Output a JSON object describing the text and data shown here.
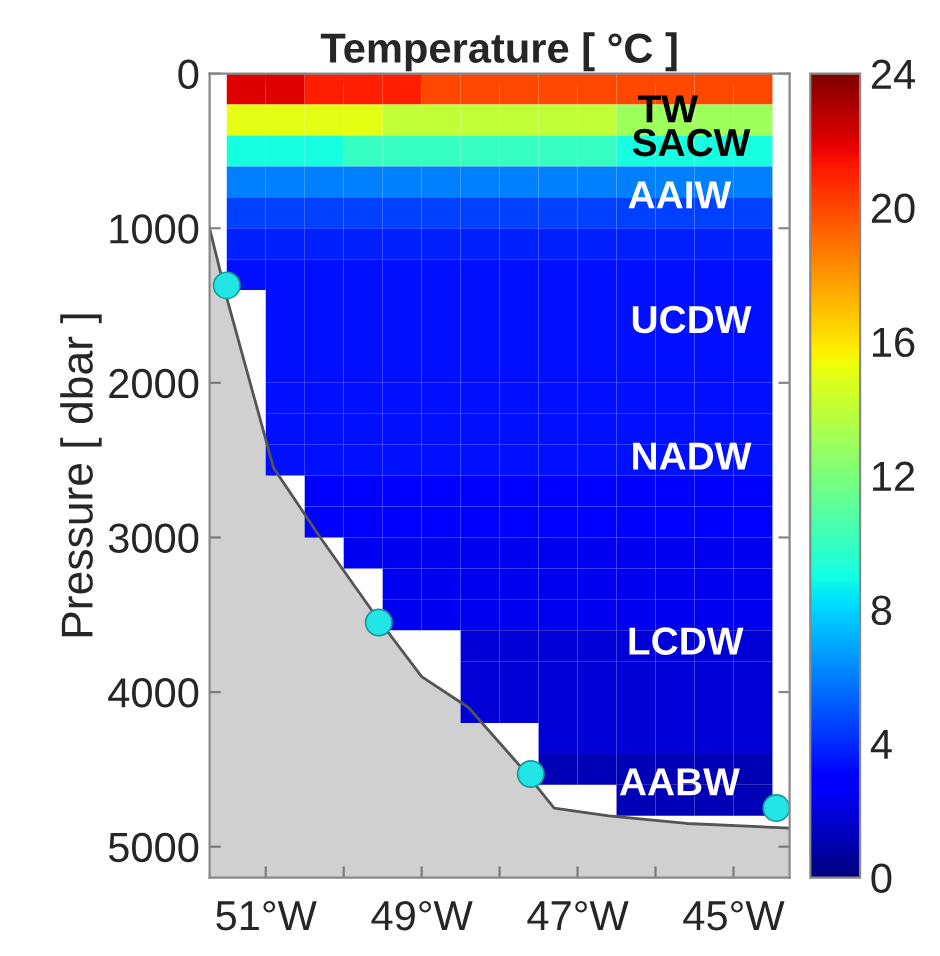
{
  "chart_data": {
    "type": "heatmap",
    "title": "Temperature [ °C ]",
    "ylabel": "Pressure [ dbar ]",
    "x": [
      -51.25,
      -50.75,
      -50.25,
      -49.75,
      -49.25,
      -48.75,
      -48.25,
      -47.75,
      -47.25,
      -46.75,
      -46.25,
      -45.75,
      -45.25,
      -44.75
    ],
    "y": [
      100,
      300,
      500,
      700,
      900,
      1100,
      1300,
      1500,
      1700,
      1900,
      2100,
      2300,
      2500,
      2700,
      2900,
      3100,
      3300,
      3500,
      3700,
      3900,
      4100,
      4300,
      4500,
      4700
    ],
    "xlim": [
      -51.72,
      -44.28
    ],
    "xticks": [
      {
        "value": -51,
        "label": "51°W"
      },
      {
        "value": -50,
        "label": null
      },
      {
        "value": -49,
        "label": "49°W"
      },
      {
        "value": -48,
        "label": null
      },
      {
        "value": -47,
        "label": "47°W"
      },
      {
        "value": -46,
        "label": null
      },
      {
        "value": -45,
        "label": "45°W"
      }
    ],
    "ylim": [
      5200,
      0
    ],
    "yticks": [
      0,
      1000,
      2000,
      3000,
      4000,
      5000
    ],
    "cells": [
      [
        22,
        22,
        21,
        21,
        21,
        20,
        20,
        20,
        20,
        20,
        20,
        20,
        20,
        20
      ],
      [
        15,
        15,
        15,
        15,
        14,
        14,
        14,
        14,
        14,
        14,
        13,
        13,
        13,
        13
      ],
      [
        9,
        9,
        9,
        10,
        10,
        10,
        10,
        10,
        10,
        10,
        9,
        9,
        9,
        9
      ],
      [
        6,
        6,
        6,
        6,
        6,
        6,
        6,
        6,
        6,
        6,
        6,
        6,
        6,
        6
      ],
      [
        4.5,
        4.5,
        4.5,
        4.5,
        4.5,
        4.5,
        4.5,
        4.5,
        4.5,
        4.5,
        4.5,
        4.5,
        4.5,
        4.5
      ],
      [
        3.8,
        3.8,
        3.8,
        3.8,
        3.8,
        3.8,
        3.8,
        3.8,
        3.8,
        3.8,
        3.8,
        3.8,
        3.8,
        3.8
      ],
      [
        3.4,
        3.4,
        3.4,
        3.4,
        3.4,
        3.4,
        3.4,
        3.4,
        3.4,
        3.4,
        3.4,
        3.4,
        3.4,
        3.4
      ],
      [
        null,
        3.4,
        3.4,
        3.4,
        3.4,
        3.4,
        3.4,
        3.4,
        3.4,
        3.4,
        3.4,
        3.4,
        3.4,
        3.4
      ],
      [
        null,
        3.4,
        3.4,
        3.4,
        3.4,
        3.4,
        3.4,
        3.4,
        3.4,
        3.4,
        3.4,
        3.4,
        3.4,
        3.4
      ],
      [
        null,
        3.4,
        3.4,
        3.4,
        3.4,
        3.4,
        3.4,
        3.4,
        3.4,
        3.4,
        3.4,
        3.4,
        3.4,
        3.4
      ],
      [
        null,
        3.4,
        3.4,
        3.4,
        3.4,
        3.4,
        3.4,
        3.4,
        3.4,
        3.4,
        3.4,
        3.4,
        3.4,
        3.4
      ],
      [
        null,
        3.4,
        3.4,
        3.4,
        3.4,
        3.4,
        3.4,
        3.4,
        3.4,
        3.4,
        3.4,
        3.4,
        3.4,
        3.4
      ],
      [
        null,
        3.4,
        3.4,
        3.4,
        3.4,
        3.4,
        3.4,
        3.4,
        3.4,
        3.4,
        3.4,
        3.4,
        3.4,
        3.4
      ],
      [
        null,
        null,
        3.0,
        3.0,
        3.0,
        3.0,
        3.0,
        3.0,
        3.0,
        3.0,
        3.0,
        3.0,
        3.0,
        3.0
      ],
      [
        null,
        null,
        3.0,
        3.0,
        3.0,
        3.0,
        3.0,
        3.0,
        3.0,
        3.0,
        3.0,
        3.0,
        3.0,
        3.0
      ],
      [
        null,
        null,
        null,
        2.4,
        2.4,
        2.4,
        2.4,
        2.4,
        2.4,
        2.4,
        2.4,
        2.4,
        2.4,
        2.4
      ],
      [
        null,
        null,
        null,
        null,
        2.4,
        2.4,
        2.4,
        2.4,
        2.4,
        2.4,
        2.4,
        2.4,
        2.4,
        2.4
      ],
      [
        null,
        null,
        null,
        null,
        2.4,
        2.4,
        2.4,
        2.4,
        2.4,
        2.4,
        2.4,
        2.4,
        2.4,
        2.4
      ],
      [
        null,
        null,
        null,
        null,
        null,
        null,
        1.8,
        1.8,
        1.8,
        1.8,
        1.8,
        1.8,
        1.8,
        1.8
      ],
      [
        null,
        null,
        null,
        null,
        null,
        null,
        1.8,
        1.8,
        1.8,
        1.8,
        1.8,
        1.8,
        1.8,
        1.8
      ],
      [
        null,
        null,
        null,
        null,
        null,
        null,
        1.8,
        1.8,
        1.8,
        1.8,
        1.8,
        1.8,
        1.8,
        1.8
      ],
      [
        null,
        null,
        null,
        null,
        null,
        null,
        null,
        null,
        1.8,
        1.8,
        1.8,
        1.8,
        1.8,
        1.8
      ],
      [
        null,
        null,
        null,
        null,
        null,
        null,
        null,
        null,
        1.2,
        1.2,
        1.2,
        1.2,
        1.2,
        1.2
      ],
      [
        null,
        null,
        null,
        null,
        null,
        null,
        null,
        null,
        null,
        null,
        1.2,
        1.2,
        1.2,
        1.2
      ]
    ],
    "clim": [
      0,
      24
    ],
    "cticks": [
      0,
      4,
      8,
      12,
      16,
      20,
      24
    ],
    "series": [
      {
        "type": "line",
        "color": "#555555",
        "x": [
          -51.72,
          -51.5,
          -51.2,
          -50.9,
          -50.3,
          -49.6,
          -49.0,
          -48.4,
          -47.7,
          -47.3,
          -46.6,
          -45.6,
          -44.28
        ],
        "values": [
          1000,
          1450,
          2000,
          2550,
          3000,
          3500,
          3900,
          4100,
          4500,
          4750,
          4800,
          4850,
          4880
        ],
        "lower": [
          1000,
          1450,
          2000,
          2550,
          3000,
          3500,
          3900,
          4100,
          4500,
          4750,
          4800,
          4850,
          4880
        ],
        "upper": [
          5200,
          5200,
          5200,
          5200,
          5200,
          5200,
          5200,
          5200,
          5200,
          5200,
          5200,
          5200,
          5200
        ]
      },
      {
        "type": "scatter",
        "color": "#22e5e5",
        "x": [
          -51.5,
          -49.55,
          -47.6,
          -44.45
        ],
        "values": [
          1370,
          3550,
          4530,
          4750
        ]
      }
    ],
    "annotations": [
      "TW",
      "SACW",
      "AAIW",
      "UCDW",
      "NADW",
      "LCDW",
      "AABW"
    ]
  }
}
